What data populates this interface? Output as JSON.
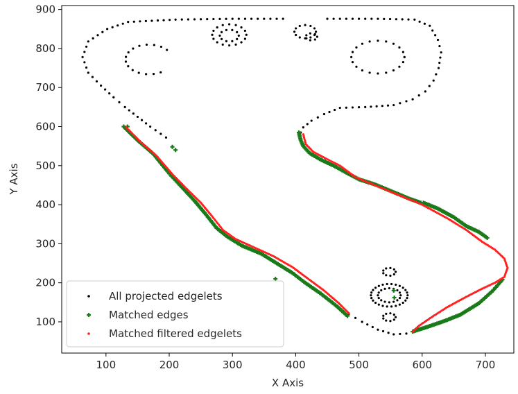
{
  "chart_data": {
    "type": "scatter",
    "title": "",
    "xlabel": "X Axis",
    "ylabel": "Y Axis",
    "xlim": [
      30,
      745
    ],
    "ylim": [
      20,
      910
    ],
    "x_ticks": [
      100,
      200,
      300,
      400,
      500,
      600,
      700
    ],
    "y_ticks": [
      100,
      200,
      300,
      400,
      500,
      600,
      700,
      800,
      900
    ],
    "grid": false,
    "legend_position": "lower-left",
    "series": [
      {
        "name": "All projected edgelets",
        "color": "#000000",
        "marker": "dot",
        "paths": [
          [
            [
              380,
              876
            ],
            [
              300,
              876
            ],
            [
              210,
              874
            ],
            [
              135,
              868
            ],
            [
              102,
              850
            ],
            [
              72,
              818
            ],
            [
              63,
              778
            ],
            [
              72,
              738
            ],
            [
              92,
              705
            ],
            [
              112,
              675
            ],
            [
              130,
              650
            ],
            [
              150,
              625
            ],
            [
              170,
              600
            ],
            [
              195,
              572
            ]
          ],
          [
            [
              450,
              876
            ],
            [
              530,
              876
            ],
            [
              588,
              874
            ],
            [
              612,
              858
            ],
            [
              625,
              822
            ],
            [
              630,
              790
            ],
            [
              626,
              750
            ],
            [
              618,
              718
            ],
            [
              605,
              690
            ],
            [
              585,
              670
            ],
            [
              555,
              655
            ],
            [
              510,
              650
            ],
            [
              470,
              648
            ],
            [
              445,
              632
            ],
            [
              425,
              615
            ],
            [
              412,
              598
            ],
            [
              408,
              585
            ]
          ],
          [
            [
              484,
              120
            ],
            [
              505,
              100
            ],
            [
              530,
              80
            ],
            [
              555,
              68
            ],
            [
              575,
              70
            ],
            [
              588,
              76
            ]
          ]
        ],
        "rings": [
          {
            "cx": 295,
            "cy": 835,
            "r": 27,
            "n": 16
          },
          {
            "cx": 295,
            "cy": 833,
            "r": 15,
            "n": 10
          },
          {
            "cx": 415,
            "cy": 843,
            "r": 17,
            "n": 12
          },
          {
            "cx": 425,
            "cy": 830,
            "r": 9,
            "n": 7
          },
          {
            "cx": 548,
            "cy": 228,
            "r": 10,
            "n": 9
          },
          {
            "cx": 548,
            "cy": 168,
            "r": 29,
            "n": 26
          },
          {
            "cx": 548,
            "cy": 168,
            "r": 18,
            "n": 16
          },
          {
            "cx": 548,
            "cy": 112,
            "r": 10,
            "n": 9
          }
        ],
        "arcs": [
          {
            "cx": 168,
            "cy": 772,
            "rx": 37,
            "ry": 38,
            "start_deg": 40,
            "end_deg": 300,
            "n": 14
          },
          {
            "cx": 530,
            "cy": 778,
            "rx": 42,
            "ry": 42,
            "start_deg": 0,
            "end_deg": 360,
            "n": 20
          }
        ]
      },
      {
        "name": "Matched edges",
        "color": "#1a7a1a",
        "marker": "plus",
        "paths": [
          [
            [
              128,
              600
            ],
            [
              150,
              565
            ],
            [
              175,
              530
            ],
            [
              200,
              480
            ],
            [
              220,
              445
            ],
            [
              240,
              410
            ],
            [
              258,
              375
            ],
            [
              275,
              340
            ],
            [
              292,
              318
            ],
            [
              315,
              295
            ],
            [
              345,
              275
            ],
            [
              370,
              250
            ],
            [
              395,
              225
            ],
            [
              415,
              200
            ],
            [
              440,
              172
            ],
            [
              465,
              140
            ],
            [
              482,
              115
            ]
          ],
          [
            [
              405,
              585
            ],
            [
              408,
              565
            ],
            [
              412,
              550
            ],
            [
              422,
              532
            ],
            [
              440,
              515
            ],
            [
              460,
              500
            ],
            [
              480,
              482
            ],
            [
              500,
              465
            ],
            [
              525,
              452
            ],
            [
              555,
              432
            ],
            [
              580,
              415
            ],
            [
              598,
              405
            ]
          ],
          [
            [
              602,
              405
            ],
            [
              625,
              390
            ],
            [
              650,
              368
            ],
            [
              670,
              345
            ],
            [
              690,
              330
            ],
            [
              703,
              315
            ]
          ],
          [
            [
              585,
              75
            ],
            [
              610,
              88
            ],
            [
              635,
              102
            ],
            [
              660,
              118
            ],
            [
              690,
              148
            ],
            [
              712,
              180
            ],
            [
              727,
              208
            ]
          ]
        ],
        "points": [
          [
            555,
            180
          ],
          [
            556,
            162
          ],
          [
            368,
            210
          ],
          [
            134,
            600
          ],
          [
            205,
            548
          ],
          [
            210,
            540
          ]
        ]
      },
      {
        "name": "Matched filtered edgelets",
        "color": "#ff2020",
        "marker": "dot",
        "paths": [
          [
            [
              132,
              598
            ],
            [
              155,
              560
            ],
            [
              180,
              525
            ],
            [
              205,
              478
            ],
            [
              228,
              440
            ],
            [
              250,
              405
            ],
            [
              268,
              370
            ],
            [
              285,
              335
            ],
            [
              305,
              312
            ],
            [
              335,
              290
            ],
            [
              365,
              268
            ],
            [
              395,
              240
            ],
            [
              420,
              210
            ],
            [
              445,
              180
            ],
            [
              468,
              148
            ],
            [
              484,
              122
            ]
          ],
          [
            [
              412,
              580
            ],
            [
              416,
              555
            ],
            [
              428,
              535
            ],
            [
              448,
              518
            ],
            [
              470,
              500
            ],
            [
              495,
              470
            ],
            [
              540,
              440
            ],
            [
              600,
              400
            ],
            [
              640,
              365
            ],
            [
              670,
              335
            ],
            [
              695,
              305
            ],
            [
              715,
              285
            ],
            [
              730,
              262
            ],
            [
              735,
              238
            ],
            [
              730,
              215
            ],
            [
              715,
              200
            ],
            [
              695,
              185
            ],
            [
              665,
              160
            ],
            [
              640,
              138
            ],
            [
              615,
              112
            ],
            [
              595,
              90
            ],
            [
              585,
              75
            ]
          ]
        ]
      }
    ]
  }
}
